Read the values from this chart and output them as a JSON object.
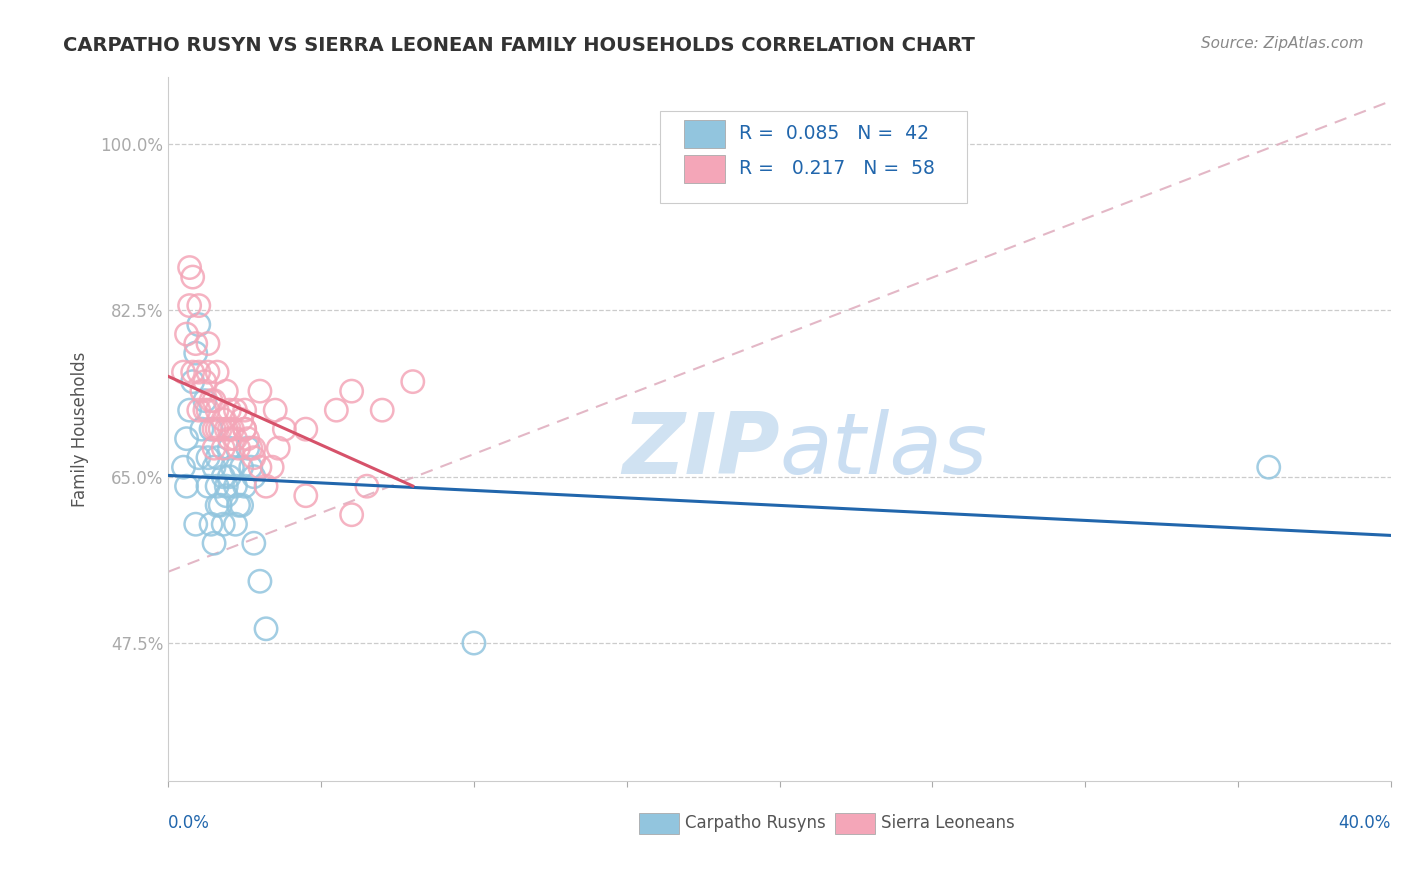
{
  "title": "CARPATHO RUSYN VS SIERRA LEONEAN FAMILY HOUSEHOLDS CORRELATION CHART",
  "source": "Source: ZipAtlas.com",
  "ylabel": "Family Households",
  "legend_labels": [
    "Carpatho Rusyns",
    "Sierra Leoneans"
  ],
  "legend_r": [
    0.085,
    0.217
  ],
  "legend_n": [
    42,
    58
  ],
  "xlim": [
    0.0,
    0.4
  ],
  "ylim": [
    0.33,
    1.07
  ],
  "yticks": [
    0.475,
    0.65,
    0.825,
    1.0
  ],
  "ytick_labels": [
    "47.5%",
    "65.0%",
    "82.5%",
    "100.0%"
  ],
  "xtick_left_label": "0.0%",
  "xtick_right_label": "40.0%",
  "color_blue": "#92c5de",
  "color_pink": "#f4a6b8",
  "line_blue": "#2166ac",
  "line_pink": "#d6526a",
  "legend_text_color": "#2166ac",
  "watermark_color": "#c8ddf0",
  "background_color": "#ffffff",
  "grid_color": "#cccccc",
  "blue_x": [
    0.005,
    0.006,
    0.007,
    0.008,
    0.009,
    0.01,
    0.01,
    0.011,
    0.012,
    0.013,
    0.013,
    0.014,
    0.015,
    0.015,
    0.016,
    0.016,
    0.017,
    0.018,
    0.018,
    0.019,
    0.02,
    0.02,
    0.021,
    0.022,
    0.023,
    0.024,
    0.025,
    0.026,
    0.027,
    0.028,
    0.006,
    0.009,
    0.014,
    0.016,
    0.019,
    0.022,
    0.024,
    0.028,
    0.03,
    0.032,
    0.1,
    0.36
  ],
  "blue_y": [
    0.66,
    0.69,
    0.72,
    0.75,
    0.78,
    0.81,
    0.67,
    0.7,
    0.73,
    0.64,
    0.67,
    0.7,
    0.58,
    0.66,
    0.64,
    0.67,
    0.62,
    0.6,
    0.65,
    0.63,
    0.65,
    0.68,
    0.66,
    0.64,
    0.62,
    0.66,
    0.64,
    0.68,
    0.66,
    0.65,
    0.64,
    0.6,
    0.6,
    0.62,
    0.64,
    0.6,
    0.62,
    0.58,
    0.54,
    0.49,
    0.475,
    0.66
  ],
  "pink_x": [
    0.005,
    0.006,
    0.007,
    0.008,
    0.008,
    0.009,
    0.01,
    0.01,
    0.011,
    0.012,
    0.012,
    0.013,
    0.013,
    0.014,
    0.015,
    0.015,
    0.016,
    0.016,
    0.017,
    0.018,
    0.018,
    0.019,
    0.02,
    0.02,
    0.021,
    0.022,
    0.023,
    0.024,
    0.025,
    0.026,
    0.027,
    0.028,
    0.007,
    0.01,
    0.013,
    0.016,
    0.019,
    0.022,
    0.025,
    0.028,
    0.03,
    0.032,
    0.034,
    0.036,
    0.038,
    0.045,
    0.06,
    0.065,
    0.015,
    0.02,
    0.025,
    0.03,
    0.035,
    0.045,
    0.055,
    0.06,
    0.07,
    0.08
  ],
  "pink_y": [
    0.76,
    0.8,
    0.83,
    0.86,
    0.76,
    0.79,
    0.72,
    0.76,
    0.74,
    0.72,
    0.75,
    0.72,
    0.76,
    0.73,
    0.7,
    0.73,
    0.7,
    0.72,
    0.7,
    0.68,
    0.71,
    0.7,
    0.69,
    0.72,
    0.7,
    0.69,
    0.68,
    0.71,
    0.7,
    0.69,
    0.68,
    0.67,
    0.87,
    0.83,
    0.79,
    0.76,
    0.74,
    0.72,
    0.7,
    0.68,
    0.66,
    0.64,
    0.66,
    0.68,
    0.7,
    0.63,
    0.61,
    0.64,
    0.68,
    0.7,
    0.72,
    0.74,
    0.72,
    0.7,
    0.72,
    0.74,
    0.72,
    0.75
  ]
}
